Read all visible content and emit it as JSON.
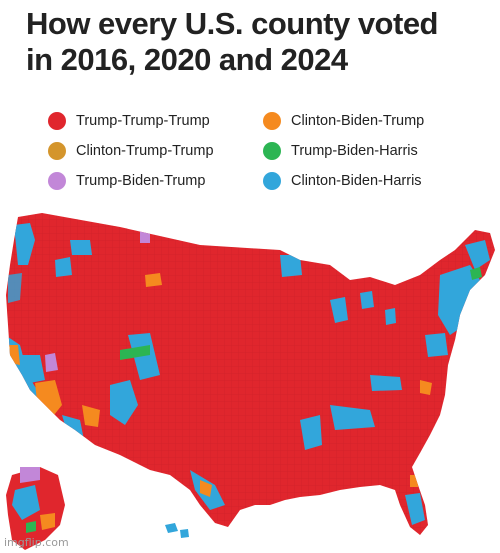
{
  "title": {
    "line1": "How every U.S. county voted",
    "line2": "in 2016, 2020 and 2024"
  },
  "legend": [
    {
      "label": "Trump-Trump-Trump",
      "color": "#e0262d"
    },
    {
      "label": "Clinton-Trump-Trump",
      "color": "#d4952c"
    },
    {
      "label": "Trump-Biden-Trump",
      "color": "#c287d8"
    },
    {
      "label": "Clinton-Biden-Trump",
      "color": "#f58a1f"
    },
    {
      "label": "Trump-Biden-Harris",
      "color": "#2cb553"
    },
    {
      "label": "Clinton-Biden-Harris",
      "color": "#32a6db"
    }
  ],
  "watermark": "imgflip.com"
}
